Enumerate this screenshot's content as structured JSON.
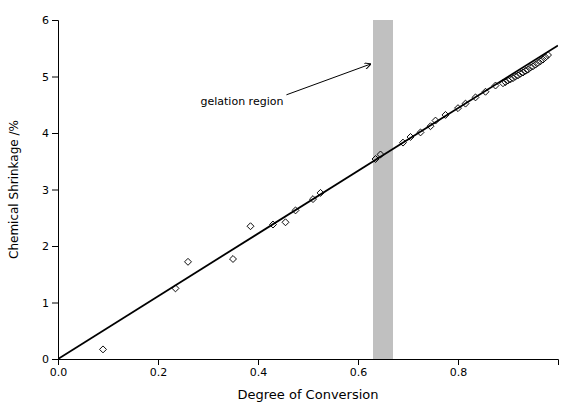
{
  "chart_data": {
    "type": "scatter",
    "xlabel": "Degree of Conversion",
    "ylabel": "Chemical Shrinkage /%",
    "xlim": [
      0,
      1.0
    ],
    "ylim": [
      0,
      6
    ],
    "xticks": [
      {
        "value": 0,
        "label": "0.0"
      },
      {
        "value": 0.2,
        "label": "0.2"
      },
      {
        "value": 0.4,
        "label": "0.4"
      },
      {
        "value": 0.6,
        "label": "0.6"
      },
      {
        "value": 0.8,
        "label": "0.8"
      }
    ],
    "yticks": [
      0,
      1,
      2,
      3,
      4,
      5,
      6
    ],
    "grid": false,
    "series": [
      {
        "type": "scatter",
        "marker": "diamond",
        "color": "#000000",
        "x": [
          0.09,
          0.235,
          0.26,
          0.35,
          0.385,
          0.43,
          0.455,
          0.475,
          0.51,
          0.525,
          0.635,
          0.645,
          0.69,
          0.705,
          0.725,
          0.745,
          0.755,
          0.775,
          0.8,
          0.815,
          0.835,
          0.855,
          0.875,
          0.89,
          0.895,
          0.9,
          0.905,
          0.91,
          0.915,
          0.92,
          0.925,
          0.93,
          0.935,
          0.94,
          0.945,
          0.95,
          0.955,
          0.96,
          0.965,
          0.97,
          0.975,
          0.98
        ],
        "values": [
          0.17,
          1.25,
          1.72,
          1.77,
          2.35,
          2.38,
          2.42,
          2.63,
          2.83,
          2.94,
          3.54,
          3.62,
          3.83,
          3.93,
          4.01,
          4.12,
          4.22,
          4.32,
          4.44,
          4.52,
          4.63,
          4.73,
          4.84,
          4.88,
          4.9,
          4.93,
          4.95,
          4.97,
          5.0,
          5.02,
          5.05,
          5.07,
          5.1,
          5.12,
          5.16,
          5.18,
          5.21,
          5.24,
          5.27,
          5.3,
          5.34,
          5.38
        ]
      },
      {
        "type": "line",
        "color": "#000000",
        "x": [
          0.0,
          1.0
        ],
        "values": [
          0.0,
          5.55
        ]
      }
    ],
    "bands": [
      {
        "x": [
          0.63,
          0.67
        ],
        "color": "#c0c0c0"
      }
    ],
    "annotations": [
      {
        "text": "gelation region",
        "x": 0.285,
        "y": 4.45,
        "arrow_x": 0.625,
        "arrow_y": 5.22
      }
    ]
  }
}
